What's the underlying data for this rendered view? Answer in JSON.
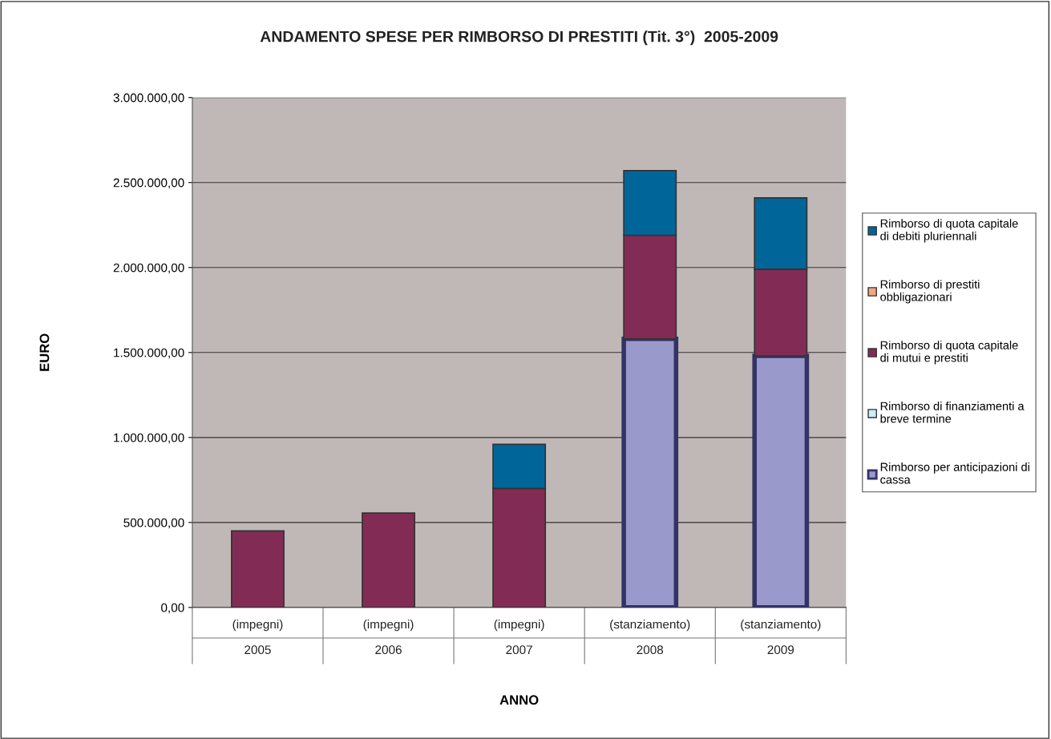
{
  "chart_data": {
    "type": "bar",
    "stacked": true,
    "title": "ANDAMENTO SPESE PER RIMBORSO DI PRESTITI (Tit. 3°)  2005-2009",
    "xlabel": "ANNO",
    "ylabel": "EURO",
    "categories": [
      "(impegni)\n2005",
      "(impegni)\n2006",
      "(impegni)\n2007",
      "(stanziamento)\n2008",
      "(stanziamento)\n2009"
    ],
    "series": [
      {
        "name": "Rimborso per anticipazioni di\ncassa",
        "color": "#9999cc",
        "values": [
          0,
          0,
          0,
          1580000,
          1480000
        ]
      },
      {
        "name": "Rimborso di finanziamenti a\nbreve termine",
        "color": "#ccecff",
        "values": [
          0,
          0,
          0,
          0,
          0
        ]
      },
      {
        "name": "Rimborso di quota capitale\ndi mutui e prestiti",
        "color": "#822c55",
        "values": [
          450000,
          555000,
          700000,
          610000,
          510000
        ]
      },
      {
        "name": "Rimborso di prestiti\nobbligazionari",
        "color": "#f4a582",
        "values": [
          0,
          0,
          0,
          0,
          0
        ]
      },
      {
        "name": "Rimborso di quota capitale\ndi debiti pluriennali",
        "color": "#00669a",
        "values": [
          0,
          0,
          260000,
          380000,
          420000
        ]
      }
    ],
    "ylim": [
      0,
      3000000
    ],
    "yticks": [
      {
        "value": 0,
        "label": "0,00"
      },
      {
        "value": 500000,
        "label": "500.000,00"
      },
      {
        "value": 1000000,
        "label": "1.000.000,00"
      },
      {
        "value": 1500000,
        "label": "1.500.000,00"
      },
      {
        "value": 2000000,
        "label": "2.000.000,00"
      },
      {
        "value": 2500000,
        "label": "2.500.000,00"
      },
      {
        "value": 3000000,
        "label": "3.000.000,00"
      }
    ],
    "grid": "y",
    "legend": "right"
  }
}
